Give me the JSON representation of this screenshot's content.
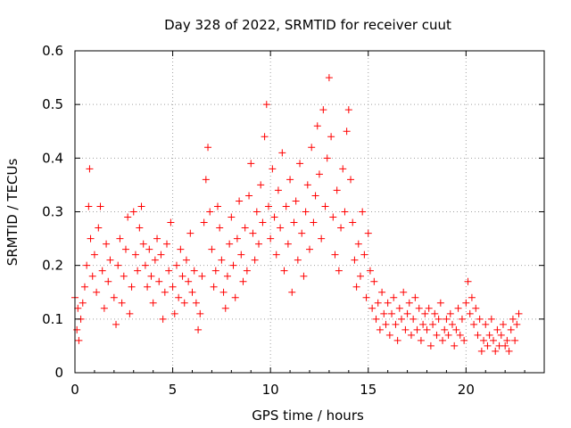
{
  "chart_data": {
    "type": "scatter",
    "title": "Day 328 of 2022, SRMTID for receiver cuut",
    "xlabel": "GPS time / hours",
    "ylabel": "SRMTID / TECUs",
    "xlim": [
      0,
      24
    ],
    "ylim": [
      0,
      0.6
    ],
    "xticks": [
      0,
      5,
      10,
      15,
      20
    ],
    "xtick_labels": [
      "0",
      "5",
      "10",
      "15",
      "20"
    ],
    "yticks": [
      0,
      0.1,
      0.2,
      0.3,
      0.4,
      0.5,
      0.6
    ],
    "ytick_labels": [
      "0",
      "0.1",
      "0.2",
      "0.3",
      "0.4",
      "0.5",
      "0.6"
    ],
    "grid": true,
    "marker": "+",
    "marker_color": "#ff0000",
    "series": [
      {
        "name": "SRMTID",
        "points": [
          [
            0.0,
            0.14
          ],
          [
            0.1,
            0.08
          ],
          [
            0.15,
            0.12
          ],
          [
            0.2,
            0.06
          ],
          [
            0.3,
            0.1
          ],
          [
            0.4,
            0.13
          ],
          [
            0.5,
            0.16
          ],
          [
            0.6,
            0.2
          ],
          [
            0.7,
            0.31
          ],
          [
            0.75,
            0.38
          ],
          [
            0.8,
            0.25
          ],
          [
            0.9,
            0.18
          ],
          [
            1.0,
            0.22
          ],
          [
            1.1,
            0.15
          ],
          [
            1.2,
            0.27
          ],
          [
            1.3,
            0.31
          ],
          [
            1.4,
            0.19
          ],
          [
            1.5,
            0.12
          ],
          [
            1.6,
            0.24
          ],
          [
            1.7,
            0.17
          ],
          [
            1.8,
            0.21
          ],
          [
            2.0,
            0.14
          ],
          [
            2.1,
            0.09
          ],
          [
            2.2,
            0.2
          ],
          [
            2.3,
            0.25
          ],
          [
            2.4,
            0.13
          ],
          [
            2.5,
            0.18
          ],
          [
            2.6,
            0.23
          ],
          [
            2.7,
            0.29
          ],
          [
            2.8,
            0.11
          ],
          [
            2.9,
            0.16
          ],
          [
            3.0,
            0.3
          ],
          [
            3.1,
            0.22
          ],
          [
            3.2,
            0.19
          ],
          [
            3.3,
            0.27
          ],
          [
            3.4,
            0.31
          ],
          [
            3.5,
            0.24
          ],
          [
            3.6,
            0.2
          ],
          [
            3.7,
            0.16
          ],
          [
            3.8,
            0.23
          ],
          [
            3.9,
            0.18
          ],
          [
            4.0,
            0.13
          ],
          [
            4.1,
            0.21
          ],
          [
            4.2,
            0.25
          ],
          [
            4.3,
            0.17
          ],
          [
            4.4,
            0.22
          ],
          [
            4.5,
            0.1
          ],
          [
            4.6,
            0.15
          ],
          [
            4.7,
            0.24
          ],
          [
            4.8,
            0.19
          ],
          [
            4.9,
            0.28
          ],
          [
            5.0,
            0.16
          ],
          [
            5.1,
            0.11
          ],
          [
            5.2,
            0.2
          ],
          [
            5.3,
            0.14
          ],
          [
            5.4,
            0.23
          ],
          [
            5.5,
            0.18
          ],
          [
            5.6,
            0.13
          ],
          [
            5.7,
            0.21
          ],
          [
            5.8,
            0.17
          ],
          [
            5.9,
            0.26
          ],
          [
            6.0,
            0.15
          ],
          [
            6.1,
            0.19
          ],
          [
            6.2,
            0.13
          ],
          [
            6.3,
            0.08
          ],
          [
            6.4,
            0.11
          ],
          [
            6.5,
            0.18
          ],
          [
            6.6,
            0.28
          ],
          [
            6.7,
            0.36
          ],
          [
            6.8,
            0.42
          ],
          [
            6.9,
            0.3
          ],
          [
            7.0,
            0.23
          ],
          [
            7.1,
            0.16
          ],
          [
            7.2,
            0.19
          ],
          [
            7.3,
            0.31
          ],
          [
            7.4,
            0.27
          ],
          [
            7.5,
            0.21
          ],
          [
            7.6,
            0.15
          ],
          [
            7.7,
            0.12
          ],
          [
            7.8,
            0.18
          ],
          [
            7.9,
            0.24
          ],
          [
            8.0,
            0.29
          ],
          [
            8.1,
            0.2
          ],
          [
            8.2,
            0.14
          ],
          [
            8.3,
            0.25
          ],
          [
            8.4,
            0.32
          ],
          [
            8.5,
            0.22
          ],
          [
            8.6,
            0.17
          ],
          [
            8.7,
            0.27
          ],
          [
            8.8,
            0.19
          ],
          [
            8.9,
            0.33
          ],
          [
            9.0,
            0.39
          ],
          [
            9.1,
            0.26
          ],
          [
            9.2,
            0.21
          ],
          [
            9.3,
            0.3
          ],
          [
            9.4,
            0.24
          ],
          [
            9.5,
            0.35
          ],
          [
            9.6,
            0.28
          ],
          [
            9.7,
            0.44
          ],
          [
            9.8,
            0.5
          ],
          [
            9.9,
            0.31
          ],
          [
            10.0,
            0.25
          ],
          [
            10.1,
            0.38
          ],
          [
            10.2,
            0.29
          ],
          [
            10.3,
            0.22
          ],
          [
            10.4,
            0.34
          ],
          [
            10.5,
            0.27
          ],
          [
            10.6,
            0.41
          ],
          [
            10.7,
            0.19
          ],
          [
            10.8,
            0.31
          ],
          [
            10.9,
            0.24
          ],
          [
            11.0,
            0.36
          ],
          [
            11.1,
            0.15
          ],
          [
            11.2,
            0.28
          ],
          [
            11.3,
            0.32
          ],
          [
            11.4,
            0.21
          ],
          [
            11.5,
            0.39
          ],
          [
            11.6,
            0.26
          ],
          [
            11.7,
            0.18
          ],
          [
            11.8,
            0.3
          ],
          [
            11.9,
            0.35
          ],
          [
            12.0,
            0.23
          ],
          [
            12.1,
            0.42
          ],
          [
            12.2,
            0.28
          ],
          [
            12.3,
            0.33
          ],
          [
            12.4,
            0.46
          ],
          [
            12.5,
            0.37
          ],
          [
            12.6,
            0.25
          ],
          [
            12.7,
            0.49
          ],
          [
            12.8,
            0.31
          ],
          [
            12.9,
            0.4
          ],
          [
            13.0,
            0.55
          ],
          [
            13.1,
            0.44
          ],
          [
            13.2,
            0.29
          ],
          [
            13.3,
            0.22
          ],
          [
            13.4,
            0.34
          ],
          [
            13.5,
            0.19
          ],
          [
            13.6,
            0.27
          ],
          [
            13.7,
            0.38
          ],
          [
            13.8,
            0.3
          ],
          [
            13.9,
            0.45
          ],
          [
            14.0,
            0.49
          ],
          [
            14.1,
            0.36
          ],
          [
            14.2,
            0.28
          ],
          [
            14.3,
            0.21
          ],
          [
            14.4,
            0.16
          ],
          [
            14.5,
            0.24
          ],
          [
            14.6,
            0.18
          ],
          [
            14.7,
            0.3
          ],
          [
            14.8,
            0.22
          ],
          [
            14.9,
            0.14
          ],
          [
            15.0,
            0.26
          ],
          [
            15.1,
            0.19
          ],
          [
            15.2,
            0.12
          ],
          [
            15.3,
            0.17
          ],
          [
            15.4,
            0.1
          ],
          [
            15.5,
            0.13
          ],
          [
            15.6,
            0.08
          ],
          [
            15.7,
            0.15
          ],
          [
            15.8,
            0.11
          ],
          [
            15.9,
            0.09
          ],
          [
            16.0,
            0.13
          ],
          [
            16.1,
            0.07
          ],
          [
            16.2,
            0.11
          ],
          [
            16.3,
            0.14
          ],
          [
            16.4,
            0.09
          ],
          [
            16.5,
            0.06
          ],
          [
            16.6,
            0.12
          ],
          [
            16.7,
            0.1
          ],
          [
            16.8,
            0.15
          ],
          [
            16.9,
            0.08
          ],
          [
            17.0,
            0.11
          ],
          [
            17.1,
            0.13
          ],
          [
            17.2,
            0.07
          ],
          [
            17.3,
            0.1
          ],
          [
            17.4,
            0.14
          ],
          [
            17.5,
            0.08
          ],
          [
            17.6,
            0.12
          ],
          [
            17.7,
            0.06
          ],
          [
            17.8,
            0.09
          ],
          [
            17.9,
            0.11
          ],
          [
            18.0,
            0.08
          ],
          [
            18.1,
            0.12
          ],
          [
            18.2,
            0.05
          ],
          [
            18.3,
            0.09
          ],
          [
            18.4,
            0.11
          ],
          [
            18.5,
            0.07
          ],
          [
            18.6,
            0.1
          ],
          [
            18.7,
            0.13
          ],
          [
            18.8,
            0.06
          ],
          [
            18.9,
            0.08
          ],
          [
            19.0,
            0.1
          ],
          [
            19.1,
            0.07
          ],
          [
            19.2,
            0.11
          ],
          [
            19.3,
            0.09
          ],
          [
            19.4,
            0.05
          ],
          [
            19.5,
            0.08
          ],
          [
            19.6,
            0.12
          ],
          [
            19.7,
            0.07
          ],
          [
            19.8,
            0.1
          ],
          [
            19.9,
            0.06
          ],
          [
            20.0,
            0.13
          ],
          [
            20.1,
            0.17
          ],
          [
            20.2,
            0.11
          ],
          [
            20.3,
            0.14
          ],
          [
            20.4,
            0.09
          ],
          [
            20.5,
            0.12
          ],
          [
            20.6,
            0.07
          ],
          [
            20.7,
            0.1
          ],
          [
            20.8,
            0.04
          ],
          [
            20.9,
            0.06
          ],
          [
            21.0,
            0.09
          ],
          [
            21.1,
            0.05
          ],
          [
            21.2,
            0.07
          ],
          [
            21.3,
            0.1
          ],
          [
            21.4,
            0.06
          ],
          [
            21.5,
            0.04
          ],
          [
            21.6,
            0.08
          ],
          [
            21.7,
            0.05
          ],
          [
            21.8,
            0.07
          ],
          [
            21.9,
            0.09
          ],
          [
            22.0,
            0.05
          ],
          [
            22.1,
            0.06
          ],
          [
            22.2,
            0.04
          ],
          [
            22.3,
            0.08
          ],
          [
            22.4,
            0.1
          ],
          [
            22.5,
            0.06
          ],
          [
            22.6,
            0.09
          ],
          [
            22.7,
            0.11
          ]
        ]
      }
    ]
  }
}
